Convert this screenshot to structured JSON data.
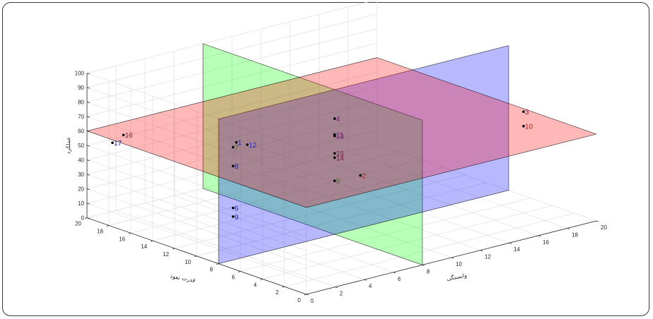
{
  "chart_data": {
    "type": "scatter3d",
    "xlabel": "وابستگی",
    "ylabel": "قدرت نفوذ",
    "zlabel": "عملکرد",
    "xlim": [
      0,
      20
    ],
    "ylim": [
      0,
      20
    ],
    "zlim": [
      0,
      100
    ],
    "x_ticks": [
      "0",
      "2",
      "4",
      "6",
      "8",
      "10",
      "12",
      "14",
      "16",
      "18",
      "20"
    ],
    "y_ticks": [
      "0",
      "2",
      "4",
      "6",
      "8",
      "10",
      "12",
      "14",
      "16",
      "18",
      "20"
    ],
    "z_ticks": [
      "0",
      "10",
      "20",
      "30",
      "40",
      "50",
      "60",
      "70",
      "80",
      "90",
      "100"
    ],
    "grid": true,
    "planes": [
      {
        "name": "dependence-plane",
        "axis": "x",
        "value": 8,
        "color": "#00ff00"
      },
      {
        "name": "driving-power-plane",
        "axis": "y",
        "value": 8,
        "color": "#0000ff"
      },
      {
        "name": "performance-plane",
        "axis": "z",
        "value": 60,
        "color": "#ff0000"
      }
    ],
    "points": [
      {
        "label": "1",
        "x": 5,
        "y": 13,
        "z": 58,
        "color": "#2b2bbf"
      },
      {
        "label": "2",
        "x": 6,
        "y": 3,
        "z": 59,
        "color": "#b22222"
      },
      {
        "label": "3",
        "x": 18,
        "y": 4,
        "z": 70,
        "color": "#7a1f3d"
      },
      {
        "label": "4",
        "x": 8,
        "y": 8,
        "z": 80,
        "color": "#7a1f7a"
      },
      {
        "label": "5",
        "x": 8,
        "y": 8,
        "z": 37,
        "color": "#4a6a2a"
      },
      {
        "label": "6",
        "x": 1,
        "y": 8,
        "z": 36,
        "color": "#1f1f9a"
      },
      {
        "label": "7",
        "x": 1,
        "y": 8,
        "z": 78,
        "color": "#4a6a2a"
      },
      {
        "label": "8",
        "x": 1,
        "y": 8,
        "z": 65,
        "color": "#1f1f9a"
      },
      {
        "label": "9",
        "x": 1,
        "y": 8,
        "z": 30,
        "color": "#1f1f9a"
      },
      {
        "label": "10",
        "x": 18,
        "y": 4,
        "z": 60,
        "color": "#b22222"
      },
      {
        "label": "11",
        "x": 8,
        "y": 8,
        "z": 69,
        "color": "#7a1f7a"
      },
      {
        "label": "12",
        "x": 5,
        "y": 12,
        "z": 59,
        "color": "#2b2bbf"
      },
      {
        "label": "13",
        "x": 8,
        "y": 8,
        "z": 68,
        "color": "#7a1f7a"
      },
      {
        "label": "14",
        "x": 8,
        "y": 8,
        "z": 53,
        "color": "#7a1f3d"
      },
      {
        "label": "15",
        "x": 8,
        "y": 8,
        "z": 56,
        "color": "#7a1f3d"
      },
      {
        "label": "16",
        "x": 1,
        "y": 18,
        "z": 60,
        "color": "#7a1f3d"
      },
      {
        "label": "17",
        "x": 1,
        "y": 19,
        "z": 52,
        "color": "#1f1f9a"
      }
    ]
  }
}
